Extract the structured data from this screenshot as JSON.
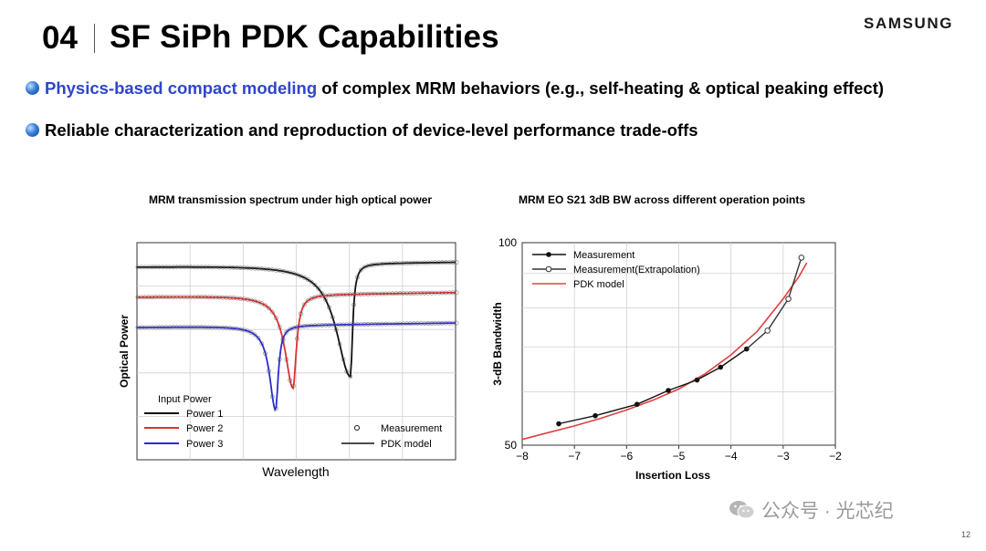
{
  "header": {
    "section_number": "04",
    "title": "SF SiPh PDK Capabilities",
    "brand": "SAMSUNG"
  },
  "bullets": [
    {
      "highlight": "Physics-based compact modeling",
      "text": " of complex MRM behaviors  (e.g., self-heating & optical peaking effect)"
    },
    {
      "highlight": "",
      "text": "Reliable characterization and reproduction of device-level performance trade-offs"
    }
  ],
  "footer": {
    "wechat": "公众号 · 光芯纪",
    "page_number": "12"
  },
  "colors": {
    "highlight_blue": "#2f46c8",
    "power1": "#111111",
    "power2": "#e03030",
    "power3": "#2a2ad8",
    "measurement": "#1a1a1a",
    "pdk_model": "#e04040"
  },
  "chart_data": [
    {
      "type": "line",
      "title": "MRM transmission spectrum under high optical power",
      "xlabel": "Wavelength",
      "ylabel": "Optical Power",
      "x_ticks_labeled": false,
      "y_ticks_labeled": false,
      "grid": true,
      "legend_title": "Input Power",
      "legend": {
        "power_entries": [
          "Power 1",
          "Power 2",
          "Power 3"
        ],
        "style_entries": [
          "Measurement",
          "PDK model"
        ],
        "placement": "bottom"
      },
      "series": [
        {
          "name": "Power 1",
          "color": "#111111",
          "baseline": 0.9,
          "dip_center": 0.67,
          "dip_min": 0.38,
          "left_width": 0.13,
          "right_width": 0.02
        },
        {
          "name": "Power 2",
          "color": "#e03030",
          "baseline": 0.76,
          "dip_center": 0.49,
          "dip_min": 0.33,
          "left_width": 0.075,
          "right_width": 0.03
        },
        {
          "name": "Power 3",
          "color": "#2a2ad8",
          "baseline": 0.62,
          "dip_center": 0.435,
          "dip_min": 0.23,
          "left_width": 0.055,
          "right_width": 0.025
        }
      ]
    },
    {
      "type": "line",
      "title": "MRM EO S21 3dB BW across different operation points",
      "xlabel": "Insertion Loss",
      "ylabel": "3-dB Bandwidth",
      "x_ticks": [
        -8,
        -7,
        -6,
        -5,
        -4,
        -3,
        -2
      ],
      "xlim": [
        -8,
        -2
      ],
      "y_tick_labels": [
        "100",
        "50"
      ],
      "ylim": [
        50,
        100
      ],
      "y_log": true,
      "grid": true,
      "legend_placement": "top-left",
      "series": [
        {
          "name": "Measurement",
          "color": "#111111",
          "marker": "filled",
          "x": [
            -7.3,
            -6.6,
            -5.8,
            -5.2,
            -4.65,
            -4.2,
            -3.7
          ],
          "y": [
            53.8,
            55.3,
            57.5,
            60.3,
            62.5,
            65.3,
            69.5
          ]
        },
        {
          "name": "Measurement(Extrapolation)",
          "color": "#333333",
          "marker": "hollow",
          "x": [
            -3.7,
            -3.3,
            -2.9,
            -2.65
          ],
          "y": [
            69.5,
            74.0,
            82.5,
            95.0
          ]
        },
        {
          "name": "PDK model",
          "color": "#e04040",
          "marker": "none",
          "x": [
            -8.0,
            -7.5,
            -7.0,
            -6.5,
            -6.0,
            -5.5,
            -5.0,
            -4.5,
            -4.0,
            -3.5,
            -3.0,
            -2.7,
            -2.55
          ],
          "y": [
            51.0,
            52.2,
            53.4,
            54.8,
            56.4,
            58.3,
            60.6,
            63.8,
            68.1,
            73.8,
            82.5,
            89.0,
            93.3
          ]
        }
      ]
    }
  ]
}
